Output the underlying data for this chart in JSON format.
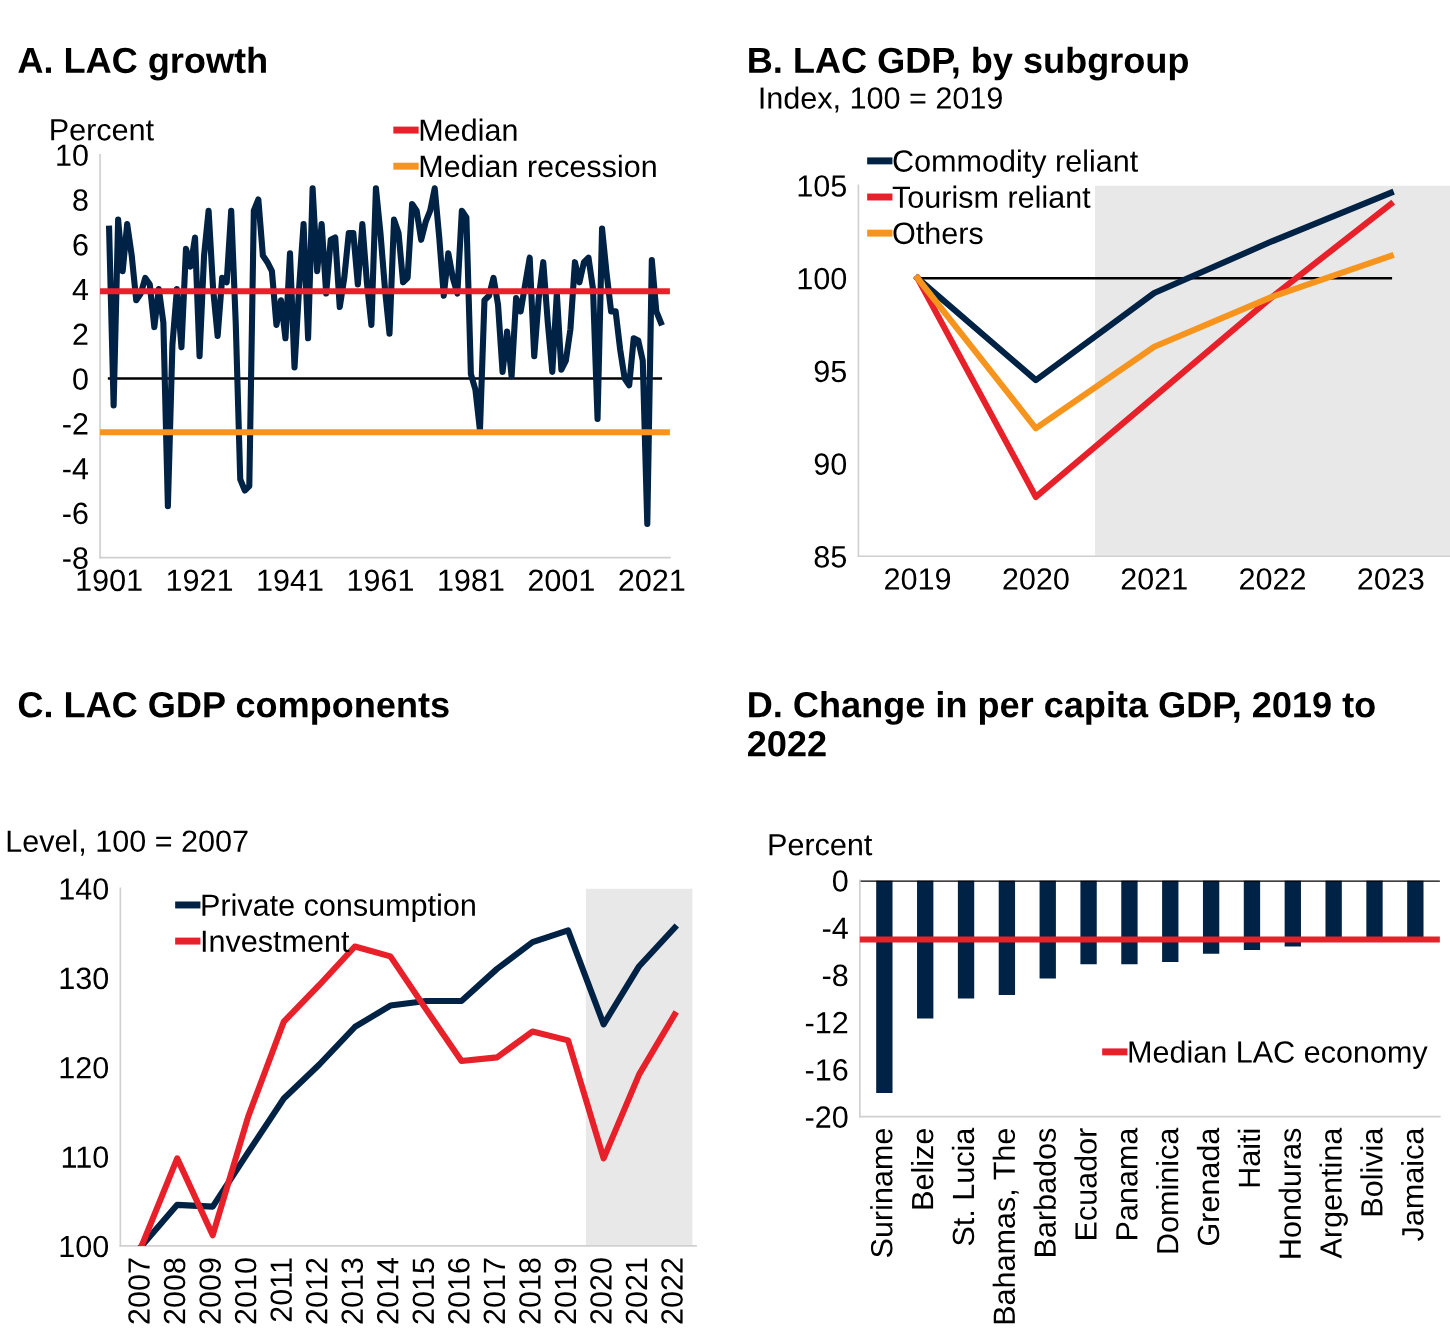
{
  "chart_data": [
    {
      "type": "line",
      "title": "A. LAC growth",
      "ylabel": "Percent",
      "x": [
        1901,
        1902,
        1903,
        1904,
        1905,
        1906,
        1907,
        1908,
        1909,
        1910,
        1911,
        1912,
        1913,
        1914,
        1915,
        1916,
        1917,
        1918,
        1919,
        1920,
        1921,
        1922,
        1923,
        1924,
        1925,
        1926,
        1927,
        1928,
        1929,
        1930,
        1931,
        1932,
        1933,
        1934,
        1935,
        1936,
        1937,
        1938,
        1939,
        1940,
        1941,
        1942,
        1943,
        1944,
        1945,
        1946,
        1947,
        1948,
        1949,
        1950,
        1951,
        1952,
        1953,
        1954,
        1955,
        1956,
        1957,
        1958,
        1959,
        1960,
        1961,
        1962,
        1963,
        1964,
        1965,
        1966,
        1967,
        1968,
        1969,
        1970,
        1971,
        1972,
        1973,
        1974,
        1975,
        1976,
        1977,
        1978,
        1979,
        1980,
        1981,
        1982,
        1983,
        1984,
        1985,
        1986,
        1987,
        1988,
        1989,
        1990,
        1991,
        1992,
        1993,
        1994,
        1995,
        1996,
        1997,
        1998,
        1999,
        2000,
        2001,
        2002,
        2003,
        2004,
        2005,
        2006,
        2007,
        2008,
        2009,
        2010,
        2011,
        2012,
        2013,
        2014,
        2015,
        2016,
        2017,
        2018,
        2019,
        2020,
        2021,
        2022,
        2023
      ],
      "series": [
        {
          "color": "#002345",
          "values": [
            6.7,
            -1.2,
            7.1,
            4.8,
            6.9,
            5.5,
            3.5,
            3.8,
            4.5,
            4.2,
            2.3,
            4.0,
            2.5,
            -5.7,
            1.5,
            4.0,
            1.4,
            5.8,
            5.0,
            6.3,
            1.0,
            5.5,
            7.5,
            4.0,
            1.9,
            4.5,
            4.3,
            7.5,
            2.5,
            -4.5,
            -5.0,
            -4.8,
            7.5,
            8.0,
            5.5,
            5.2,
            4.8,
            2.4,
            3.5,
            1.8,
            5.6,
            0.5,
            4.0,
            6.9,
            1.8,
            8.5,
            4.8,
            6.9,
            3.8,
            6.2,
            6.3,
            3.2,
            4.5,
            6.5,
            6.5,
            4.2,
            6.9,
            4.3,
            2.4,
            8.5,
            6.5,
            4.0,
            2.0,
            7.1,
            6.5,
            4.3,
            4.5,
            7.8,
            7.5,
            6.2,
            7.0,
            7.5,
            8.5,
            6.3,
            3.7,
            5.6,
            4.5,
            3.8,
            7.5,
            7.2,
            0.2,
            -0.5,
            -2.3,
            3.5,
            3.7,
            4.5,
            3.3,
            0.3,
            2.1,
            0.1,
            3.6,
            3.0,
            4.2,
            5.4,
            1.0,
            3.6,
            5.2,
            2.5,
            0.3,
            3.8,
            0.4,
            0.8,
            2.2,
            5.2,
            4.3,
            5.2,
            5.4,
            4.0,
            -1.8,
            6.7,
            4.7,
            3.0,
            3.0,
            1.3,
            0.0,
            -0.3,
            1.8,
            1.7,
            0.8,
            -6.5,
            5.3,
            3.0,
            2.5
          ]
        }
      ],
      "xlim": [
        1899,
        2025
      ],
      "xticks": [
        1901,
        1921,
        1941,
        1961,
        1981,
        2001,
        2021
      ],
      "ylim": [
        -8,
        10
      ],
      "yticks": [
        -8,
        -6,
        -4,
        -2,
        0,
        2,
        4,
        6,
        8,
        10
      ],
      "ref_lines": [
        {
          "axis": "y",
          "value": 0,
          "color": "#000000"
        },
        {
          "axis": "y",
          "value": 3.9,
          "label": "Median",
          "color": "#e8202a"
        },
        {
          "axis": "y",
          "value": -2.4,
          "label": "Median recession",
          "color": "#f7941d"
        }
      ],
      "legend": "top right",
      "grid": false
    },
    {
      "type": "line",
      "title": "B. LAC GDP, by subgroup",
      "ylabel": "Index, 100 = 2019",
      "x": [
        2019,
        2020,
        2021,
        2022,
        2023
      ],
      "series": [
        {
          "name": "Commodity reliant",
          "color": "#002345",
          "values": [
            100,
            94.5,
            99.2,
            102.0,
            104.6
          ]
        },
        {
          "name": "Tourism reliant",
          "color": "#e8202a",
          "values": [
            100,
            88.2,
            93.6,
            99.0,
            104.0
          ]
        },
        {
          "name": "Others",
          "color": "#f7941d",
          "values": [
            100,
            91.9,
            96.3,
            99.0,
            101.2
          ]
        }
      ],
      "xlim": [
        2018.5,
        2023.5
      ],
      "xticks": [
        2019,
        2020,
        2021,
        2022,
        2023
      ],
      "ylim": [
        85,
        105
      ],
      "yticks": [
        85,
        90,
        95,
        100,
        105
      ],
      "ref_lines": [
        {
          "axis": "y",
          "value": 100,
          "color": "#000000"
        }
      ],
      "bands": [
        {
          "axis": "x",
          "from": 2020.5,
          "to": 2023.5,
          "color": "#e8e8e8"
        }
      ],
      "legend": "top left",
      "grid": false
    },
    {
      "type": "line",
      "title": "C. LAC GDP components",
      "ylabel": "Level, 100 = 2007",
      "categories": [
        "2007",
        "2008",
        "2009",
        "2010",
        "2011",
        "2012",
        "2013",
        "2014",
        "2015",
        "2016",
        "2017",
        "2018",
        "2019",
        "2020",
        "2021",
        "2022"
      ],
      "series": [
        {
          "name": "Private consumption",
          "color": "#002345",
          "values": [
            100,
            104.6,
            104.4,
            110.5,
            116.5,
            120.3,
            124.5,
            126.9,
            127.4,
            127.4,
            131.0,
            134.0,
            135.3,
            124.8,
            131.3,
            135.6
          ]
        },
        {
          "name": "Investment",
          "color": "#e8202a",
          "values": [
            100,
            109.8,
            101.2,
            114.5,
            125.1,
            129.2,
            133.5,
            132.4,
            126.5,
            120.7,
            121.1,
            124.0,
            123.0,
            109.8,
            119.2,
            125.9
          ]
        }
      ],
      "ylim": [
        100,
        140
      ],
      "yticks": [
        100,
        110,
        120,
        130,
        140
      ],
      "bands": [
        {
          "axis": "x",
          "from": "2020",
          "to": "2022",
          "color": "#e8e8e8"
        }
      ],
      "legend": "top left",
      "grid": false
    },
    {
      "type": "bar",
      "title": "D. Change in per capita GDP, 2019 to 2022",
      "ylabel": "Percent",
      "categories": [
        "Suriname",
        "Belize",
        "St. Lucia",
        "Bahamas, The",
        "Barbados",
        "Ecuador",
        "Panama",
        "Dominica",
        "Grenada",
        "Haiti",
        "Honduras",
        "Argentina",
        "Bolivia",
        "Jamaica"
      ],
      "series": [
        {
          "color": "#002345",
          "values": [
            -18.0,
            -11.7,
            -10.0,
            -9.7,
            -8.3,
            -7.1,
            -7.1,
            -6.9,
            -6.2,
            -5.9,
            -5.6,
            -5.0,
            -5.0,
            -5.0
          ]
        }
      ],
      "ylim": [
        -20,
        0
      ],
      "yticks": [
        -20,
        -16,
        -12,
        -8,
        -4,
        0
      ],
      "ref_lines": [
        {
          "axis": "y",
          "value": 0,
          "color": "#000000"
        },
        {
          "axis": "y",
          "value": -5.0,
          "label": "Median LAC economy",
          "color": "#e8202a"
        }
      ],
      "legend": "bottom right",
      "grid": false
    }
  ]
}
